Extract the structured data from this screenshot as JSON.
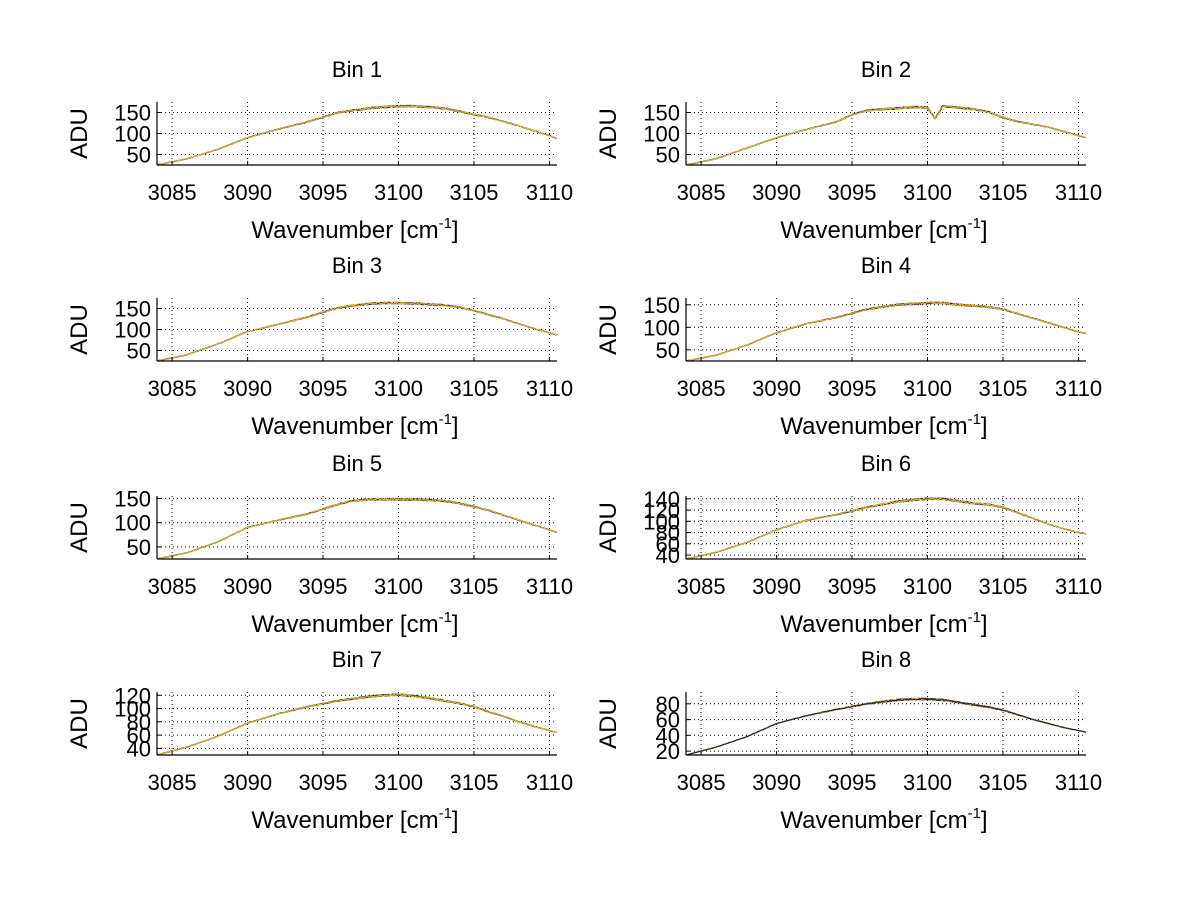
{
  "chart_data": [
    {
      "type": "line",
      "title": "Bin 1",
      "xlabel": "Wavenumber [cm",
      "xlabel_superscript": "-1",
      "xlabel_suffix": "]",
      "ylabel": "ADU",
      "xlim": [
        3084,
        3110.5
      ],
      "ylim": [
        25,
        175
      ],
      "xticks": [
        3085,
        3090,
        3095,
        3100,
        3105,
        3110
      ],
      "yticks": [
        50,
        100,
        150
      ],
      "grid": true,
      "series_colors": [
        "#1f3fd9",
        "#00a800",
        "#e00000",
        "#00c8c8",
        "#b000b0",
        "#202020",
        "#f0c000"
      ],
      "profile": {
        "x": [
          3084,
          3086,
          3088,
          3090,
          3092,
          3094,
          3096,
          3097,
          3098,
          3099,
          3100,
          3101,
          3102,
          3103,
          3104,
          3105,
          3106,
          3107,
          3108,
          3109,
          3110,
          3110.5
        ],
        "y": [
          25,
          40,
          62,
          90,
          110,
          128,
          150,
          155,
          160,
          163,
          165,
          165,
          163,
          160,
          153,
          145,
          138,
          128,
          118,
          106,
          95,
          88
        ]
      }
    },
    {
      "type": "line",
      "title": "Bin 2",
      "xlabel": "Wavenumber [cm",
      "xlabel_superscript": "-1",
      "xlabel_suffix": "]",
      "ylabel": "ADU",
      "xlim": [
        3084,
        3110.5
      ],
      "ylim": [
        25,
        175
      ],
      "xticks": [
        3085,
        3090,
        3095,
        3100,
        3105,
        3110
      ],
      "yticks": [
        50,
        100,
        150
      ],
      "grid": true,
      "series_colors": [
        "#1f3fd9",
        "#00a800",
        "#e00000",
        "#00c8c8",
        "#b000b0",
        "#202020",
        "#f0c000"
      ],
      "profile": {
        "x": [
          3084,
          3086,
          3088,
          3090,
          3092,
          3094,
          3095,
          3096,
          3098,
          3099,
          3100,
          3100.5,
          3101,
          3102,
          3103,
          3104,
          3105,
          3106,
          3107,
          3108,
          3109,
          3110,
          3110.5
        ],
        "y": [
          25,
          40,
          65,
          90,
          110,
          128,
          145,
          155,
          160,
          163,
          162,
          135,
          165,
          162,
          158,
          152,
          138,
          128,
          122,
          115,
          105,
          95,
          90
        ]
      }
    },
    {
      "type": "line",
      "title": "Bin 3",
      "xlabel": "Wavenumber [cm",
      "xlabel_superscript": "-1",
      "xlabel_suffix": "]",
      "ylabel": "ADU",
      "xlim": [
        3084,
        3110.5
      ],
      "ylim": [
        25,
        175
      ],
      "xticks": [
        3085,
        3090,
        3095,
        3100,
        3105,
        3110
      ],
      "yticks": [
        50,
        100,
        150
      ],
      "grid": true,
      "series_colors": [
        "#1f3fd9",
        "#00a800",
        "#e00000",
        "#00c8c8",
        "#b000b0",
        "#202020",
        "#f0c000"
      ],
      "profile": {
        "x": [
          3084,
          3086,
          3088,
          3090,
          3092,
          3094,
          3096,
          3097,
          3098,
          3099,
          3100,
          3101,
          3102,
          3103,
          3104,
          3105,
          3106,
          3107,
          3108,
          3109,
          3110,
          3110.5
        ],
        "y": [
          25,
          40,
          65,
          95,
          112,
          130,
          152,
          157,
          161,
          163,
          163,
          162,
          160,
          158,
          153,
          145,
          135,
          125,
          113,
          102,
          92,
          87
        ]
      }
    },
    {
      "type": "line",
      "title": "Bin 4",
      "xlabel": "Wavenumber [cm",
      "xlabel_superscript": "-1",
      "xlabel_suffix": "]",
      "ylabel": "ADU",
      "xlim": [
        3084,
        3110.5
      ],
      "ylim": [
        25,
        165
      ],
      "xticks": [
        3085,
        3090,
        3095,
        3100,
        3105,
        3110
      ],
      "yticks": [
        50,
        100,
        150
      ],
      "grid": true,
      "series_colors": [
        "#1f3fd9",
        "#00a800",
        "#e00000",
        "#00c8c8",
        "#b000b0",
        "#202020",
        "#f0c000"
      ],
      "profile": {
        "x": [
          3084,
          3086,
          3088,
          3090,
          3092,
          3094,
          3096,
          3098,
          3099,
          3100,
          3101,
          3102,
          3103,
          3104,
          3105,
          3106,
          3107,
          3108,
          3109,
          3110,
          3110.5
        ],
        "y": [
          25,
          38,
          60,
          88,
          108,
          122,
          140,
          150,
          152,
          154,
          154,
          150,
          148,
          145,
          140,
          130,
          120,
          110,
          100,
          90,
          86
        ]
      }
    },
    {
      "type": "line",
      "title": "Bin 5",
      "xlabel": "Wavenumber [cm",
      "xlabel_superscript": "-1",
      "xlabel_suffix": "]",
      "ylabel": "ADU",
      "xlim": [
        3084,
        3110.5
      ],
      "ylim": [
        25,
        155
      ],
      "xticks": [
        3085,
        3090,
        3095,
        3100,
        3105,
        3110
      ],
      "yticks": [
        50,
        100,
        150
      ],
      "grid": true,
      "series_colors": [
        "#1f3fd9",
        "#00a800",
        "#e00000",
        "#00c8c8",
        "#b000b0",
        "#202020",
        "#f0c000"
      ],
      "profile": {
        "x": [
          3084,
          3086,
          3088,
          3090,
          3092,
          3094,
          3096,
          3097,
          3098,
          3100,
          3102,
          3103,
          3104,
          3105,
          3106,
          3107,
          3108,
          3109,
          3110,
          3110.5
        ],
        "y": [
          25,
          38,
          60,
          90,
          105,
          118,
          138,
          145,
          148,
          148,
          147,
          145,
          140,
          133,
          125,
          115,
          105,
          95,
          85,
          80
        ]
      }
    },
    {
      "type": "line",
      "title": "Bin 6",
      "xlabel": "Wavenumber [cm",
      "xlabel_superscript": "-1",
      "xlabel_suffix": "]",
      "ylabel": "ADU",
      "xlim": [
        3084,
        3110.5
      ],
      "ylim": [
        33,
        145
      ],
      "xticks": [
        3085,
        3090,
        3095,
        3100,
        3105,
        3110
      ],
      "yticks": [
        40,
        60,
        80,
        100,
        120,
        140
      ],
      "grid": true,
      "series_colors": [
        "#1f3fd9",
        "#00a800",
        "#e00000",
        "#00c8c8",
        "#b000b0",
        "#202020",
        "#f0c000"
      ],
      "profile": {
        "x": [
          3084,
          3086,
          3088,
          3090,
          3092,
          3094,
          3096,
          3098,
          3099,
          3100,
          3101,
          3102,
          3103,
          3104,
          3105,
          3106,
          3107,
          3108,
          3109,
          3110,
          3110.5
        ],
        "y": [
          33,
          45,
          62,
          85,
          102,
          112,
          125,
          135,
          138,
          140,
          140,
          136,
          132,
          130,
          125,
          115,
          105,
          95,
          87,
          80,
          78
        ]
      }
    },
    {
      "type": "line",
      "title": "Bin 7",
      "xlabel": "Wavenumber [cm",
      "xlabel_superscript": "-1",
      "xlabel_suffix": "]",
      "ylabel": "ADU",
      "xlim": [
        3084,
        3110.5
      ],
      "ylim": [
        30,
        125
      ],
      "xticks": [
        3085,
        3090,
        3095,
        3100,
        3105,
        3110
      ],
      "yticks": [
        40,
        60,
        80,
        100,
        120
      ],
      "grid": true,
      "series_colors": [
        "#1f3fd9",
        "#00a800",
        "#e00000",
        "#00c8c8",
        "#b000b0",
        "#202020",
        "#f0c000"
      ],
      "profile": {
        "x": [
          3084,
          3086,
          3088,
          3090,
          3092,
          3094,
          3096,
          3098,
          3099,
          3100,
          3101,
          3102,
          3103,
          3104,
          3105,
          3106,
          3107,
          3108,
          3109,
          3110,
          3110.5
        ],
        "y": [
          30,
          42,
          58,
          78,
          92,
          103,
          112,
          118,
          120,
          121,
          119,
          116,
          112,
          108,
          103,
          95,
          88,
          80,
          73,
          67,
          64
        ]
      }
    },
    {
      "type": "line",
      "title": "Bin 8",
      "xlabel": "Wavenumber [cm",
      "xlabel_superscript": "-1",
      "xlabel_suffix": "]",
      "ylabel": "ADU",
      "xlim": [
        3084,
        3110.5
      ],
      "ylim": [
        15,
        95
      ],
      "xticks": [
        3085,
        3090,
        3095,
        3100,
        3105,
        3110
      ],
      "yticks": [
        20,
        40,
        60,
        80
      ],
      "grid": true,
      "series_colors": [
        "#1f3fd9",
        "#00a800",
        "#e00000",
        "#00c8c8",
        "#b000b0",
        "#f0c000",
        "#202020"
      ],
      "profile": {
        "x": [
          3084,
          3086,
          3088,
          3090,
          3092,
          3094,
          3096,
          3098,
          3099,
          3100,
          3101,
          3102,
          3103,
          3104,
          3105,
          3106,
          3107,
          3108,
          3109,
          3110,
          3110.5
        ],
        "y": [
          15,
          25,
          38,
          55,
          65,
          73,
          80,
          85,
          86,
          86,
          85,
          82,
          79,
          76,
          72,
          66,
          60,
          55,
          50,
          46,
          44
        ]
      }
    }
  ]
}
